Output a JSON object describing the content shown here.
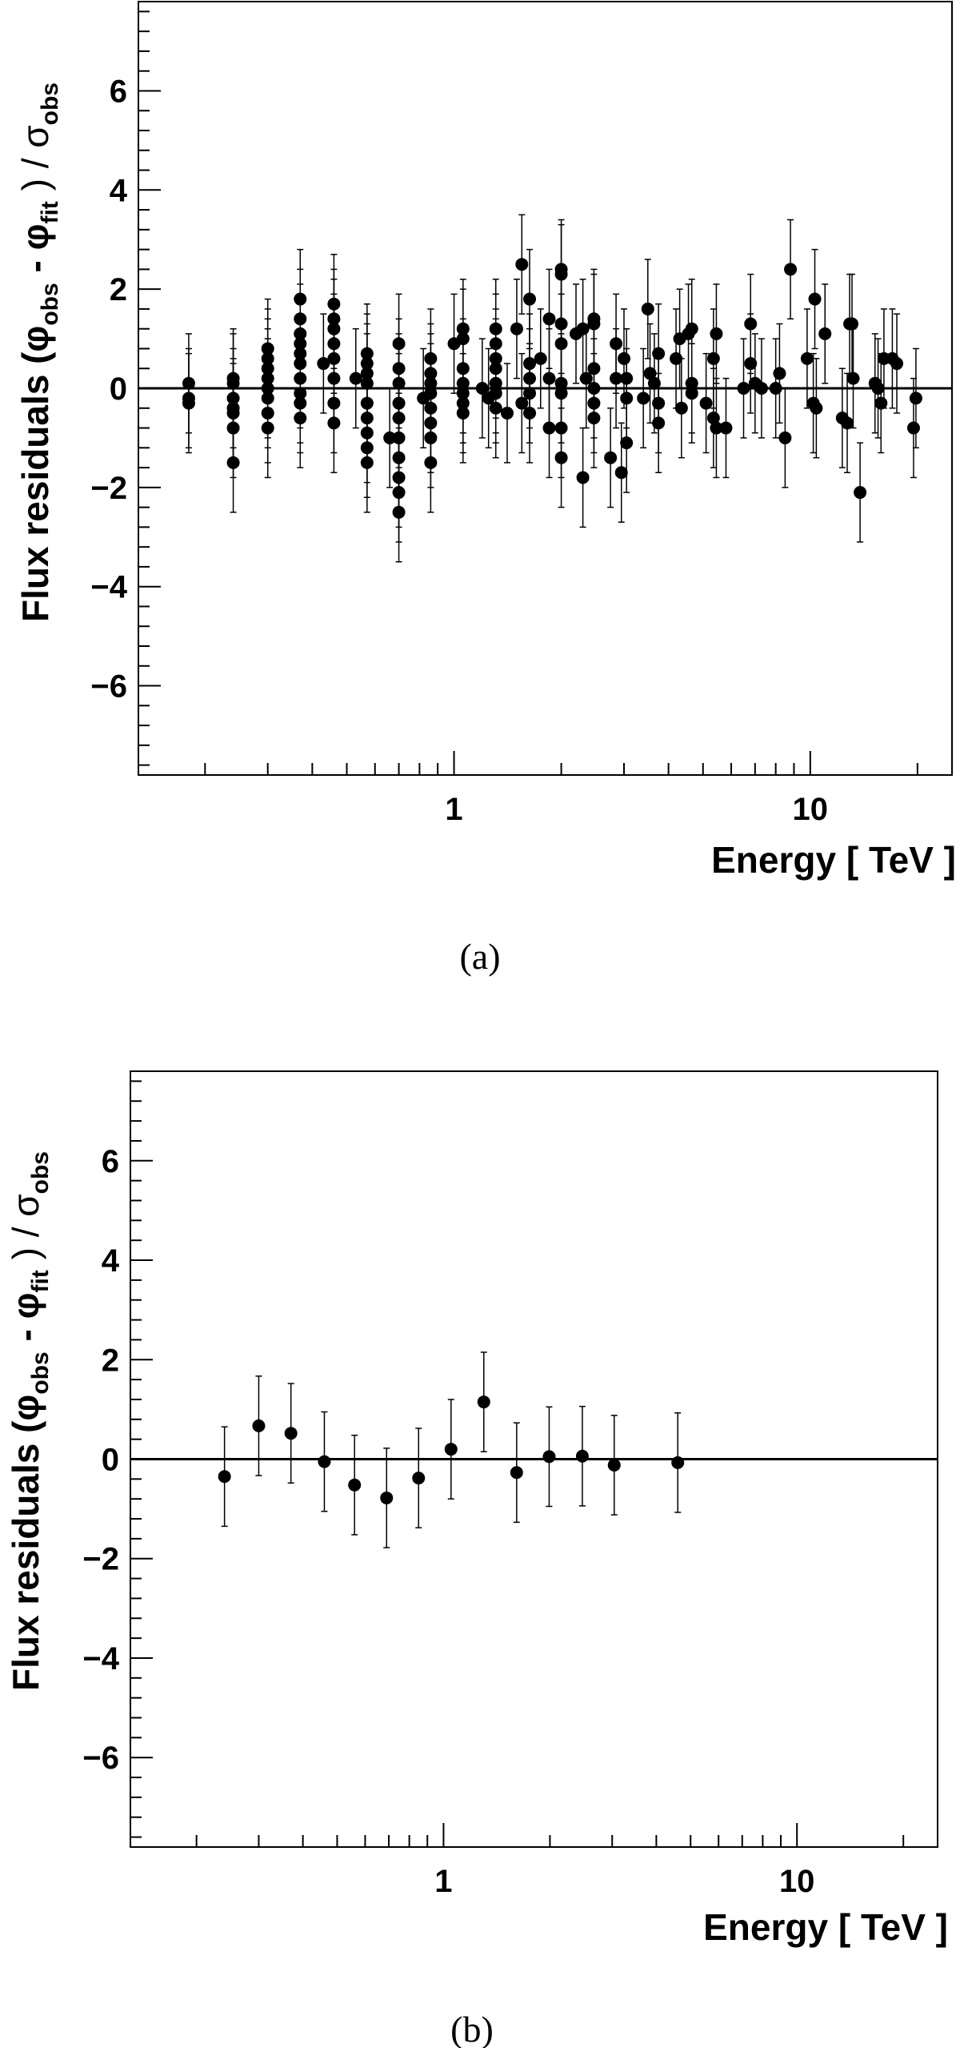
{
  "chart_data": [
    {
      "type": "scatter",
      "panel": "a",
      "caption": "(a)",
      "xlabel": "Energy [ TeV ]",
      "ylabel_main": "Flux residuals",
      "ylabel_paren_open": "(",
      "ylabel_phi1": "φ",
      "ylabel_sub1": "obs",
      "ylabel_minus": "-",
      "ylabel_phi2": "φ",
      "ylabel_sub2": "fit",
      "ylabel_close": ") /",
      "ylabel_sigma": "σ",
      "ylabel_sub3": "obs",
      "xscale": "log",
      "xlim": [
        0.13,
        25
      ],
      "ylim": [
        -7.8,
        7.8
      ],
      "xticks_labeled": [
        {
          "value": 1,
          "label": "1"
        },
        {
          "value": 10,
          "label": "10"
        }
      ],
      "yticks_labeled": [
        {
          "value": -6,
          "label": "−6"
        },
        {
          "value": -4,
          "label": "−4"
        },
        {
          "value": -2,
          "label": "−2"
        },
        {
          "value": 0,
          "label": "0"
        },
        {
          "value": 2,
          "label": "2"
        },
        {
          "value": 4,
          "label": "4"
        },
        {
          "value": 6,
          "label": "6"
        }
      ],
      "zero_line": 0,
      "error_bar": 1.0,
      "points": [
        [
          0.18,
          0.1
        ],
        [
          0.18,
          -0.2
        ],
        [
          0.18,
          -0.3
        ],
        [
          0.24,
          0.2
        ],
        [
          0.24,
          0.1
        ],
        [
          0.24,
          -0.2
        ],
        [
          0.24,
          -0.4
        ],
        [
          0.24,
          -0.5
        ],
        [
          0.24,
          -0.8
        ],
        [
          0.24,
          -1.5
        ],
        [
          0.3,
          0.8
        ],
        [
          0.3,
          0.6
        ],
        [
          0.3,
          0.4
        ],
        [
          0.3,
          0.2
        ],
        [
          0.3,
          0.0
        ],
        [
          0.3,
          -0.2
        ],
        [
          0.3,
          -0.5
        ],
        [
          0.3,
          -0.8
        ],
        [
          0.37,
          1.8
        ],
        [
          0.37,
          1.4
        ],
        [
          0.37,
          1.1
        ],
        [
          0.37,
          0.9
        ],
        [
          0.37,
          0.7
        ],
        [
          0.37,
          0.5
        ],
        [
          0.37,
          0.2
        ],
        [
          0.37,
          -0.1
        ],
        [
          0.37,
          -0.3
        ],
        [
          0.37,
          -0.6
        ],
        [
          0.43,
          0.5
        ],
        [
          0.46,
          1.7
        ],
        [
          0.46,
          1.4
        ],
        [
          0.46,
          1.2
        ],
        [
          0.46,
          0.9
        ],
        [
          0.46,
          0.6
        ],
        [
          0.46,
          0.2
        ],
        [
          0.46,
          -0.3
        ],
        [
          0.46,
          -0.7
        ],
        [
          0.53,
          0.2
        ],
        [
          0.57,
          0.7
        ],
        [
          0.57,
          0.5
        ],
        [
          0.57,
          0.3
        ],
        [
          0.57,
          0.1
        ],
        [
          0.57,
          -0.3
        ],
        [
          0.57,
          -0.6
        ],
        [
          0.57,
          -0.9
        ],
        [
          0.57,
          -1.2
        ],
        [
          0.57,
          -1.5
        ],
        [
          0.66,
          -1.0
        ],
        [
          0.7,
          0.9
        ],
        [
          0.7,
          0.4
        ],
        [
          0.7,
          0.1
        ],
        [
          0.7,
          -0.3
        ],
        [
          0.7,
          -0.6
        ],
        [
          0.7,
          -1.0
        ],
        [
          0.7,
          -1.4
        ],
        [
          0.7,
          -1.8
        ],
        [
          0.7,
          -2.1
        ],
        [
          0.7,
          -2.5
        ],
        [
          0.82,
          -0.2
        ],
        [
          0.86,
          0.6
        ],
        [
          0.86,
          0.3
        ],
        [
          0.86,
          0.1
        ],
        [
          0.86,
          -0.1
        ],
        [
          0.86,
          -0.4
        ],
        [
          0.86,
          -0.7
        ],
        [
          0.86,
          -1.0
        ],
        [
          0.86,
          -1.5
        ],
        [
          1.0,
          0.9
        ],
        [
          1.06,
          1.2
        ],
        [
          1.06,
          1.0
        ],
        [
          1.06,
          0.4
        ],
        [
          1.06,
          0.1
        ],
        [
          1.06,
          -0.1
        ],
        [
          1.06,
          -0.3
        ],
        [
          1.06,
          -0.5
        ],
        [
          1.2,
          0.0
        ],
        [
          1.25,
          -0.2
        ],
        [
          1.31,
          1.2
        ],
        [
          1.31,
          0.9
        ],
        [
          1.31,
          0.6
        ],
        [
          1.31,
          0.4
        ],
        [
          1.31,
          0.1
        ],
        [
          1.31,
          -0.1
        ],
        [
          1.31,
          -0.4
        ],
        [
          1.41,
          -0.5
        ],
        [
          1.5,
          1.2
        ],
        [
          1.55,
          2.5
        ],
        [
          1.55,
          -0.3
        ],
        [
          1.63,
          1.8
        ],
        [
          1.63,
          0.5
        ],
        [
          1.63,
          0.2
        ],
        [
          1.63,
          -0.1
        ],
        [
          1.63,
          -0.5
        ],
        [
          1.75,
          0.6
        ],
        [
          1.85,
          1.4
        ],
        [
          1.85,
          0.2
        ],
        [
          1.85,
          -0.8
        ],
        [
          2.0,
          2.4
        ],
        [
          2.0,
          2.3
        ],
        [
          2.0,
          1.3
        ],
        [
          2.0,
          0.9
        ],
        [
          2.0,
          0.1
        ],
        [
          2.0,
          -0.1
        ],
        [
          2.0,
          -0.8
        ],
        [
          2.0,
          -1.4
        ],
        [
          2.2,
          1.1
        ],
        [
          2.3,
          1.2
        ],
        [
          2.3,
          -1.8
        ],
        [
          2.35,
          0.2
        ],
        [
          2.47,
          1.4
        ],
        [
          2.47,
          1.3
        ],
        [
          2.47,
          0.4
        ],
        [
          2.47,
          0.0
        ],
        [
          2.47,
          -0.3
        ],
        [
          2.47,
          -0.6
        ],
        [
          2.75,
          -1.4
        ],
        [
          2.85,
          0.2
        ],
        [
          2.85,
          0.9
        ],
        [
          2.95,
          -1.7
        ],
        [
          3.0,
          0.6
        ],
        [
          3.05,
          -0.2
        ],
        [
          3.05,
          0.2
        ],
        [
          3.05,
          -1.1
        ],
        [
          3.4,
          -0.2
        ],
        [
          3.5,
          1.6
        ],
        [
          3.55,
          0.3
        ],
        [
          3.65,
          0.1
        ],
        [
          3.75,
          0.7
        ],
        [
          3.75,
          -0.3
        ],
        [
          3.75,
          -0.7
        ],
        [
          4.2,
          0.6
        ],
        [
          4.3,
          1.0
        ],
        [
          4.35,
          -0.4
        ],
        [
          4.55,
          1.1
        ],
        [
          4.65,
          1.2
        ],
        [
          4.65,
          0.1
        ],
        [
          4.65,
          -0.1
        ],
        [
          5.1,
          -0.3
        ],
        [
          5.35,
          0.6
        ],
        [
          5.35,
          -0.6
        ],
        [
          5.45,
          1.1
        ],
        [
          5.45,
          -0.8
        ],
        [
          5.8,
          -0.8
        ],
        [
          6.5,
          0.0
        ],
        [
          6.8,
          1.3
        ],
        [
          6.8,
          0.5
        ],
        [
          7.0,
          0.1
        ],
        [
          7.3,
          0.0
        ],
        [
          8.0,
          0.0
        ],
        [
          8.2,
          0.3
        ],
        [
          8.5,
          -1.0
        ],
        [
          8.8,
          2.4
        ],
        [
          9.8,
          0.6
        ],
        [
          10.2,
          -0.3
        ],
        [
          10.3,
          1.8
        ],
        [
          10.4,
          -0.4
        ],
        [
          11.0,
          1.1
        ],
        [
          12.3,
          -0.6
        ],
        [
          12.7,
          -0.7
        ],
        [
          12.9,
          1.3
        ],
        [
          13.1,
          1.3
        ],
        [
          13.2,
          0.2
        ],
        [
          13.8,
          -2.1
        ],
        [
          15.2,
          0.1
        ],
        [
          15.5,
          0.0
        ],
        [
          15.8,
          -0.3
        ],
        [
          16.1,
          0.6
        ],
        [
          17.0,
          0.6
        ],
        [
          17.5,
          0.5
        ],
        [
          19.5,
          -0.8
        ],
        [
          19.8,
          -0.2
        ]
      ]
    },
    {
      "type": "scatter",
      "panel": "b",
      "caption": "(b)",
      "xlabel": "Energy [ TeV ]",
      "ylabel_main": "Flux residuals",
      "ylabel_paren_open": "(",
      "ylabel_phi1": "φ",
      "ylabel_sub1": "obs",
      "ylabel_minus": "-",
      "ylabel_phi2": "φ",
      "ylabel_sub2": "fit",
      "ylabel_close": ") /",
      "ylabel_sigma": "σ",
      "ylabel_sub3": "obs",
      "xscale": "log",
      "xlim": [
        0.13,
        25
      ],
      "ylim": [
        -7.8,
        7.8
      ],
      "xticks_labeled": [
        {
          "value": 1,
          "label": "1"
        },
        {
          "value": 10,
          "label": "10"
        }
      ],
      "yticks_labeled": [
        {
          "value": -6,
          "label": "−6"
        },
        {
          "value": -4,
          "label": "−4"
        },
        {
          "value": -2,
          "label": "−2"
        },
        {
          "value": 0,
          "label": "0"
        },
        {
          "value": 2,
          "label": "2"
        },
        {
          "value": 4,
          "label": "4"
        },
        {
          "value": 6,
          "label": "6"
        }
      ],
      "zero_line": 0,
      "error_bar": 1.0,
      "points": [
        [
          0.24,
          -0.35
        ],
        [
          0.3,
          0.67
        ],
        [
          0.37,
          0.52
        ],
        [
          0.46,
          -0.05
        ],
        [
          0.56,
          -0.52
        ],
        [
          0.69,
          -0.78
        ],
        [
          0.85,
          -0.38
        ],
        [
          1.05,
          0.2
        ],
        [
          1.3,
          1.15
        ],
        [
          1.61,
          -0.27
        ],
        [
          1.99,
          0.05
        ],
        [
          2.47,
          0.06
        ],
        [
          3.04,
          -0.12
        ],
        [
          4.6,
          -0.07
        ]
      ]
    }
  ]
}
